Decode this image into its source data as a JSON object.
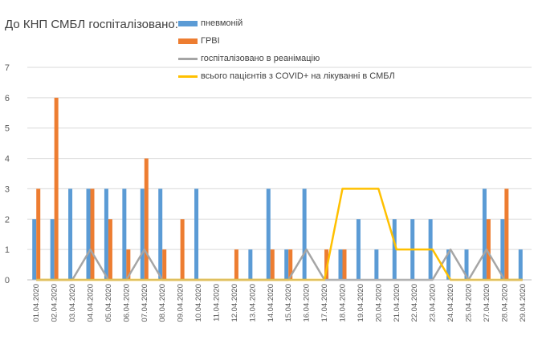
{
  "chart_data": {
    "type": "bar",
    "title": "До КНП СМБЛ госпіталізовано:",
    "categories": [
      "01.04.2020",
      "02.04.2020",
      "03.04.2020",
      "04.04.2020",
      "05.04.2020",
      "06.04.2020",
      "07.04.2020",
      "08.04.2020",
      "09.04.2020",
      "10.04.2020",
      "11.04.2020",
      "12.04.2020",
      "13.04.2020",
      "14.04.2020",
      "15.04.2020",
      "16.04.2020",
      "17.04.2020",
      "18.04.2020",
      "19.04.2020",
      "20.04.2020",
      "21.04.2020",
      "22.04.2020",
      "23.04.2020",
      "24.04.2020",
      "25.04.2020",
      "27.04.2020",
      "28.04.2020",
      "29.04.2020"
    ],
    "ylim": [
      0,
      7
    ],
    "yticks": [
      0,
      1,
      2,
      3,
      4,
      5,
      6,
      7
    ],
    "grid": true,
    "legend_position": "top",
    "series": [
      {
        "name": "пневмоній",
        "kind": "bar",
        "color": "#5B9BD5",
        "values": [
          2,
          2,
          3,
          3,
          3,
          3,
          3,
          3,
          0,
          3,
          0,
          0,
          1,
          3,
          1,
          3,
          0,
          1,
          2,
          1,
          2,
          2,
          2,
          1,
          1,
          3,
          2,
          1
        ]
      },
      {
        "name": "ГРВІ",
        "kind": "bar",
        "color": "#ED7D31",
        "values": [
          3,
          6,
          0,
          3,
          2,
          1,
          4,
          1,
          2,
          0,
          0,
          1,
          0,
          1,
          1,
          0,
          1,
          1,
          0,
          0,
          0,
          0,
          0,
          0,
          0,
          2,
          3,
          0
        ]
      },
      {
        "name": "госпіталізовано в реанімацію",
        "kind": "line",
        "color": "#A5A5A5",
        "values": [
          0,
          0,
          0,
          1,
          0,
          0,
          1,
          0,
          0,
          0,
          0,
          0,
          0,
          0,
          0,
          1,
          0,
          0,
          0,
          0,
          0,
          0,
          0,
          1,
          0,
          1,
          0,
          0
        ]
      },
      {
        "name": "всього пацієнтів з COVID+ на лікуванні в СМБЛ",
        "kind": "line",
        "color": "#FFC000",
        "values": [
          0,
          0,
          0,
          0,
          0,
          0,
          0,
          0,
          0,
          0,
          0,
          0,
          0,
          0,
          0,
          0,
          0,
          3,
          3,
          3,
          1,
          1,
          1,
          0,
          0,
          0,
          0,
          0
        ]
      }
    ]
  }
}
